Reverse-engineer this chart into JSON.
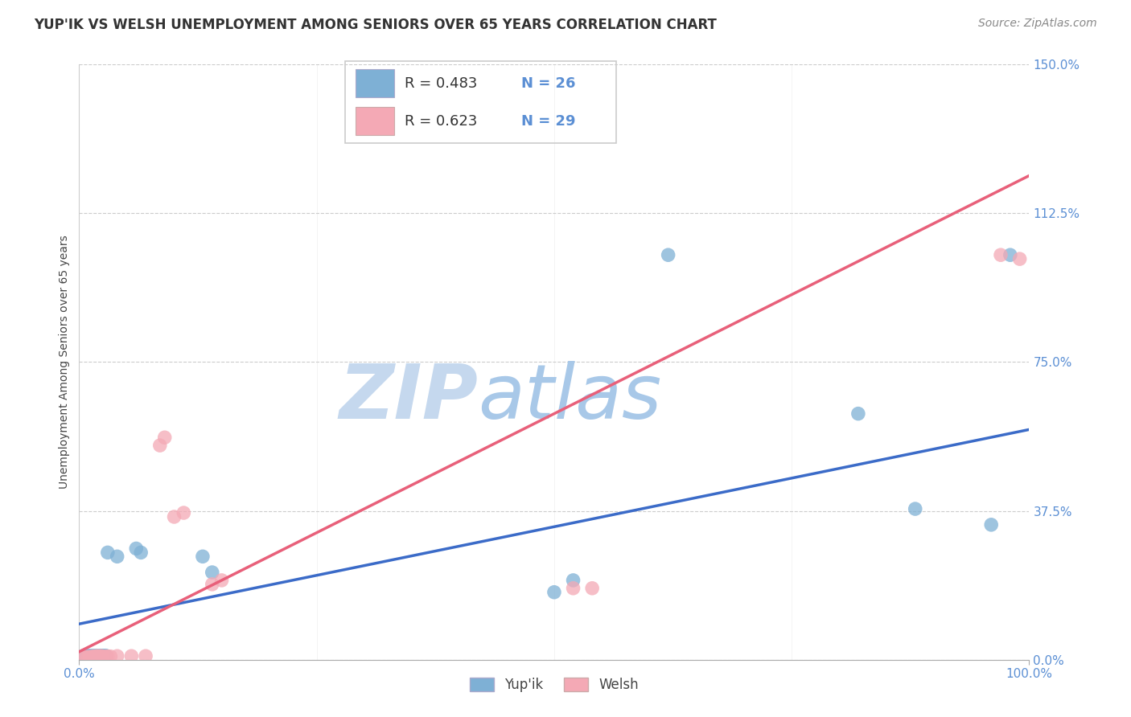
{
  "title": "YUP'IK VS WELSH UNEMPLOYMENT AMONG SENIORS OVER 65 YEARS CORRELATION CHART",
  "source": "Source: ZipAtlas.com",
  "ylabel_label": "Unemployment Among Seniors over 65 years",
  "watermark_zip": "ZIP",
  "watermark_atlas": "atlas",
  "blue_scatter_x": [
    0.005,
    0.007,
    0.009,
    0.01,
    0.012,
    0.014,
    0.016,
    0.018,
    0.02,
    0.022,
    0.025,
    0.028,
    0.03,
    0.04,
    0.06,
    0.065,
    0.13,
    0.14,
    0.5,
    0.52,
    0.62,
    0.82,
    0.88,
    0.96,
    0.98
  ],
  "blue_scatter_y": [
    0.01,
    0.005,
    0.007,
    0.01,
    0.008,
    0.01,
    0.008,
    0.01,
    0.008,
    0.01,
    0.01,
    0.01,
    0.27,
    0.26,
    0.28,
    0.27,
    0.26,
    0.22,
    0.17,
    0.2,
    1.02,
    0.62,
    0.38,
    0.34,
    1.02
  ],
  "pink_scatter_x": [
    0.005,
    0.007,
    0.009,
    0.011,
    0.013,
    0.015,
    0.017,
    0.019,
    0.021,
    0.023,
    0.025,
    0.028,
    0.03,
    0.033,
    0.04,
    0.055,
    0.07,
    0.085,
    0.09,
    0.1,
    0.11,
    0.14,
    0.15,
    0.52,
    0.54,
    0.97,
    0.99
  ],
  "pink_scatter_y": [
    0.005,
    0.007,
    0.005,
    0.007,
    0.007,
    0.008,
    0.008,
    0.009,
    0.008,
    0.009,
    0.008,
    0.008,
    0.008,
    0.008,
    0.009,
    0.009,
    0.009,
    0.54,
    0.56,
    0.36,
    0.37,
    0.19,
    0.2,
    0.18,
    0.18,
    1.02,
    1.01
  ],
  "blue_line_x": [
    0.0,
    1.0
  ],
  "blue_line_y": [
    0.09,
    0.58
  ],
  "pink_line_x": [
    0.0,
    1.0
  ],
  "pink_line_y": [
    0.02,
    1.22
  ],
  "blue_scatter_color": "#7EB0D5",
  "pink_scatter_color": "#F4A9B5",
  "blue_line_color": "#3B6BC8",
  "pink_line_color": "#E8607A",
  "xlim": [
    0.0,
    1.0
  ],
  "ylim": [
    0.0,
    1.5
  ],
  "ytick_vals": [
    0.0,
    0.375,
    0.75,
    1.125,
    1.5
  ],
  "ytick_labels": [
    "0.0%",
    "37.5%",
    "75.0%",
    "112.5%",
    "150.0%"
  ],
  "xtick_vals": [
    0.0,
    1.0
  ],
  "xtick_labels": [
    "0.0%",
    "100.0%"
  ],
  "grid_color": "#cccccc",
  "background_color": "#ffffff",
  "tick_color": "#5B8FD4",
  "title_fontsize": 12,
  "axis_label_fontsize": 10,
  "tick_fontsize": 11,
  "source_fontsize": 10,
  "legend_fontsize": 13
}
